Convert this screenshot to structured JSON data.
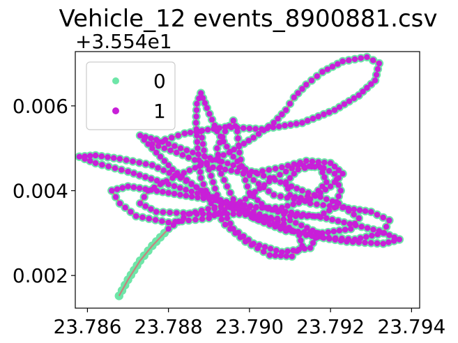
{
  "chart_data": {
    "type": "scatter",
    "title": "Vehicle_12 events_8900881.csv",
    "y_offset_label": "+3.554e1",
    "xlabel": "",
    "ylabel": "",
    "xlim": [
      23.7857,
      23.7942
    ],
    "ylim": [
      0.00123,
      0.00728
    ],
    "x_ticks": [
      23.786,
      23.788,
      23.79,
      23.792,
      23.794
    ],
    "x_tick_labels": [
      "23.786",
      "23.788",
      "23.790",
      "23.792",
      "23.794"
    ],
    "y_ticks": [
      0.002,
      0.004,
      0.006
    ],
    "y_tick_labels": [
      "0.002",
      "0.004",
      "0.006"
    ],
    "legend": {
      "placement": "upper-left",
      "entries": [
        "0",
        "1"
      ]
    },
    "colors": {
      "series0": "#6ee6a8",
      "series1": "#c81fd8",
      "track": "#c98080"
    },
    "grid": false,
    "path": [
      [
        23.78678,
        0.00152
      ],
      [
        23.787,
        0.0019
      ],
      [
        23.7873,
        0.00235
      ],
      [
        23.7876,
        0.0027
      ],
      [
        23.788,
        0.0031
      ],
      [
        23.7885,
        0.00345
      ],
      [
        23.7893,
        0.00365
      ],
      [
        23.7901,
        0.0035
      ],
      [
        23.79085,
        0.00322
      ],
      [
        23.79123,
        0.00295
      ],
      [
        23.7913,
        0.0027
      ],
      [
        23.79105,
        0.00245
      ],
      [
        23.7905,
        0.00248
      ],
      [
        23.7899,
        0.0028
      ],
      [
        23.7894,
        0.0032
      ],
      [
        23.78905,
        0.0037
      ],
      [
        23.7888,
        0.0043
      ],
      [
        23.78872,
        0.005
      ],
      [
        23.78868,
        0.0056
      ],
      [
        23.7887,
        0.00605
      ],
      [
        23.7888,
        0.0063
      ],
      [
        23.78895,
        0.00595
      ],
      [
        23.7892,
        0.0054
      ],
      [
        23.7896,
        0.0048
      ],
      [
        23.7901,
        0.00425
      ],
      [
        23.7906,
        0.0039
      ],
      [
        23.7911,
        0.0038
      ],
      [
        23.7916,
        0.0039
      ],
      [
        23.7919,
        0.0042
      ],
      [
        23.79175,
        0.00455
      ],
      [
        23.7912,
        0.0046
      ],
      [
        23.7906,
        0.0043
      ],
      [
        23.7899,
        0.0038
      ],
      [
        23.789,
        0.00335
      ],
      [
        23.788,
        0.00325
      ],
      [
        23.7872,
        0.0034
      ],
      [
        23.7868,
        0.0037
      ],
      [
        23.7866,
        0.004
      ],
      [
        23.787,
        0.0041
      ],
      [
        23.788,
        0.00395
      ],
      [
        23.7893,
        0.00375
      ],
      [
        23.7906,
        0.00355
      ],
      [
        23.7919,
        0.00335
      ],
      [
        23.7932,
        0.00305
      ],
      [
        23.7937,
        0.00285
      ],
      [
        23.7933,
        0.00275
      ],
      [
        23.7924,
        0.0028
      ],
      [
        23.7914,
        0.00295
      ],
      [
        23.7905,
        0.0032
      ],
      [
        23.7896,
        0.00355
      ],
      [
        23.7888,
        0.004
      ],
      [
        23.7881,
        0.0045
      ],
      [
        23.7876,
        0.005
      ],
      [
        23.7873,
        0.0053
      ],
      [
        23.7877,
        0.0052
      ],
      [
        23.7886,
        0.0049
      ],
      [
        23.7896,
        0.0046
      ],
      [
        23.7905,
        0.0043
      ],
      [
        23.7913,
        0.004
      ],
      [
        23.7922,
        0.0037
      ],
      [
        23.7927,
        0.00335
      ],
      [
        23.7925,
        0.0031
      ],
      [
        23.7918,
        0.003
      ],
      [
        23.7909,
        0.00305
      ],
      [
        23.7901,
        0.00335
      ],
      [
        23.7896,
        0.0038
      ],
      [
        23.7893,
        0.0044
      ],
      [
        23.7892,
        0.005
      ],
      [
        23.7894,
        0.0054
      ],
      [
        23.7896,
        0.00565
      ],
      [
        23.7897,
        0.0054
      ],
      [
        23.78975,
        0.0049
      ],
      [
        23.78985,
        0.0044
      ],
      [
        23.79,
        0.00395
      ],
      [
        23.7904,
        0.0036
      ],
      [
        23.791,
        0.0034
      ],
      [
        23.7917,
        0.0034
      ],
      [
        23.7921,
        0.0036
      ],
      [
        23.79225,
        0.004
      ],
      [
        23.7921,
        0.0044
      ],
      [
        23.7917,
        0.0046
      ],
      [
        23.7912,
        0.0045
      ],
      [
        23.7909,
        0.0042
      ],
      [
        23.791,
        0.0039
      ],
      [
        23.7915,
        0.0037
      ],
      [
        23.7923,
        0.0036
      ],
      [
        23.793,
        0.0035
      ],
      [
        23.79345,
        0.0033
      ],
      [
        23.7933,
        0.003
      ],
      [
        23.7926,
        0.00285
      ],
      [
        23.7918,
        0.0029
      ],
      [
        23.7909,
        0.0031
      ],
      [
        23.79,
        0.00345
      ],
      [
        23.7891,
        0.00385
      ],
      [
        23.7883,
        0.0043
      ],
      [
        23.7876,
        0.0046
      ],
      [
        23.7868,
        0.00475
      ],
      [
        23.7862,
        0.00483
      ],
      [
        23.7858,
        0.0048
      ],
      [
        23.7862,
        0.00465
      ],
      [
        23.787,
        0.00445
      ],
      [
        23.788,
        0.00415
      ],
      [
        23.789,
        0.00385
      ],
      [
        23.79,
        0.0036
      ],
      [
        23.7908,
        0.0036
      ],
      [
        23.7915,
        0.0038
      ],
      [
        23.792,
        0.0041
      ],
      [
        23.7923,
        0.0044
      ],
      [
        23.792,
        0.00465
      ],
      [
        23.7914,
        0.0047
      ],
      [
        23.7908,
        0.00455
      ],
      [
        23.79,
        0.0044
      ],
      [
        23.7891,
        0.00455
      ],
      [
        23.7882,
        0.0049
      ],
      [
        23.7876,
        0.0051
      ],
      [
        23.7884,
        0.00535
      ],
      [
        23.7894,
        0.0055
      ],
      [
        23.7903,
        0.00545
      ],
      [
        23.7913,
        0.0056
      ],
      [
        23.7921,
        0.0059
      ],
      [
        23.7927,
        0.00625
      ],
      [
        23.7931,
        0.0066
      ],
      [
        23.7932,
        0.007
      ],
      [
        23.7929,
        0.00715
      ],
      [
        23.7923,
        0.00705
      ],
      [
        23.7918,
        0.0068
      ],
      [
        23.7914,
        0.0065
      ],
      [
        23.7911,
        0.0062
      ],
      [
        23.7909,
        0.0059
      ],
      [
        23.7906,
        0.0056
      ],
      [
        23.7901,
        0.00525
      ],
      [
        23.7895,
        0.0049
      ],
      [
        23.7888,
        0.0046
      ],
      [
        23.7881,
        0.0043
      ],
      [
        23.7875,
        0.004
      ],
      [
        23.7873,
        0.0037
      ],
      [
        23.7877,
        0.0035
      ],
      [
        23.7887,
        0.00345
      ],
      [
        23.7899,
        0.00345
      ],
      [
        23.791,
        0.0033
      ],
      [
        23.7917,
        0.003
      ],
      [
        23.7915,
        0.00265
      ],
      [
        23.7908,
        0.00255
      ],
      [
        23.7901,
        0.00275
      ],
      [
        23.7896,
        0.0031
      ],
      [
        23.7893,
        0.0036
      ],
      [
        23.7891,
        0.0042
      ],
      [
        23.7889,
        0.0048
      ],
      [
        23.7888,
        0.0054
      ]
    ]
  }
}
